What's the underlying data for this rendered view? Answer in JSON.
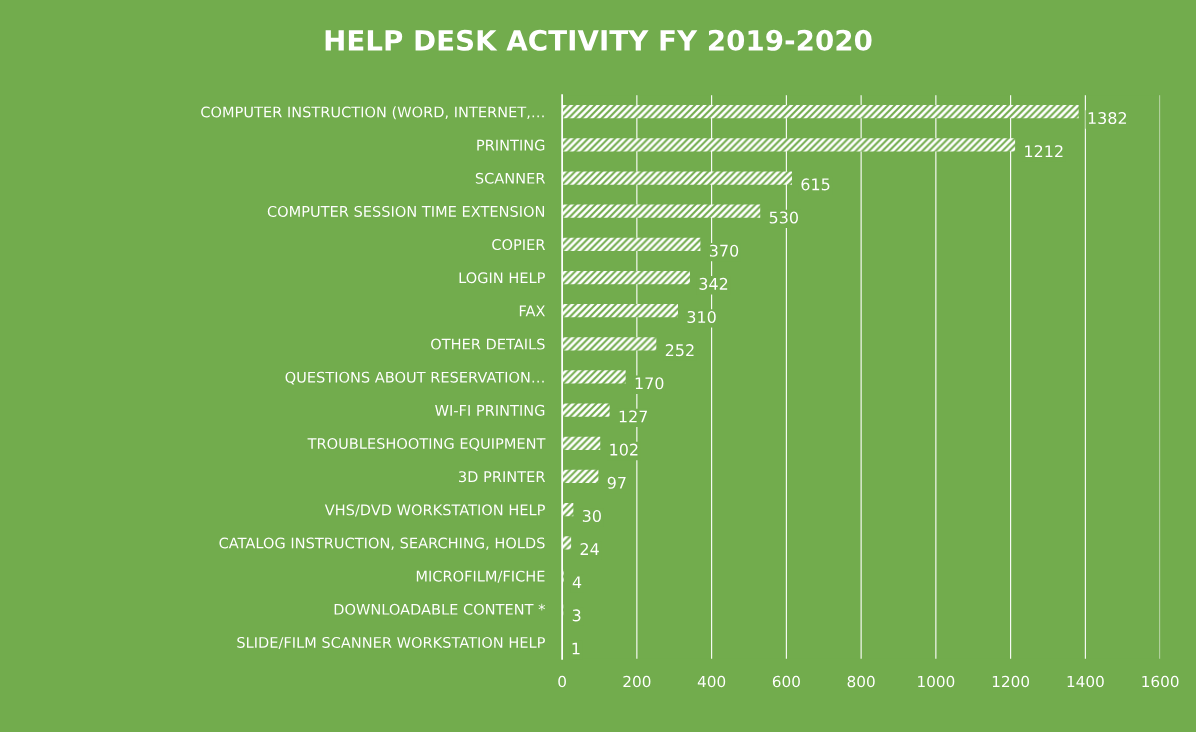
{
  "chart_data": {
    "type": "bar",
    "orientation": "horizontal",
    "title": "HELP DESK ACTIVITY FY 2019-2020",
    "categories": [
      "COMPUTER INSTRUCTION (WORD, INTERNET,…",
      "PRINTING",
      "SCANNER",
      "COMPUTER SESSION TIME EXTENSION",
      "COPIER",
      "LOGIN HELP",
      "FAX",
      "OTHER DETAILS",
      "QUESTIONS ABOUT RESERVATION…",
      "WI-FI PRINTING",
      "TROUBLESHOOTING EQUIPMENT",
      "3D PRINTER",
      "VHS/DVD WORKSTATION HELP",
      "CATALOG INSTRUCTION, SEARCHING, HOLDS",
      "MICROFILM/FICHE",
      "DOWNLOADABLE CONTENT *",
      "SLIDE/FILM SCANNER WORKSTATION HELP"
    ],
    "values": [
      1382,
      1212,
      615,
      530,
      370,
      342,
      310,
      252,
      170,
      127,
      102,
      97,
      30,
      24,
      4,
      3,
      1
    ],
    "color": "#ffffff",
    "xlim": [
      0,
      1600
    ],
    "xticks": [
      0,
      200,
      400,
      600,
      800,
      1000,
      1200,
      1400,
      1600
    ],
    "grid": "x",
    "data_labels": true
  }
}
